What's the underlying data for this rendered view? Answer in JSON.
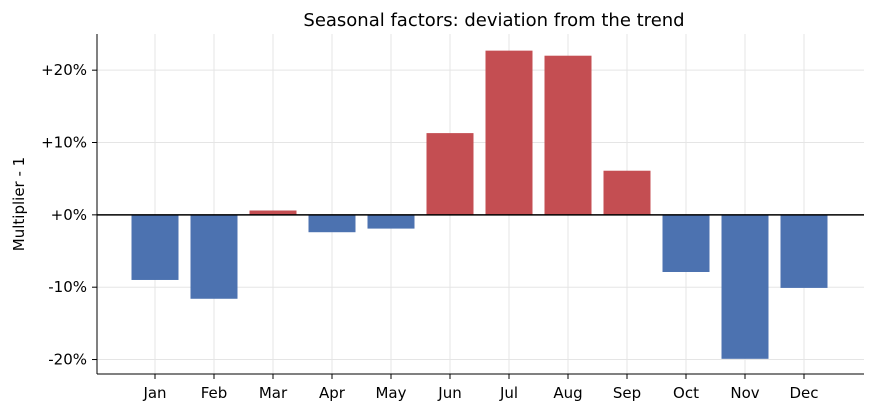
{
  "chart_data": {
    "type": "bar",
    "title": "Seasonal factors: deviation from the trend",
    "xlabel": "",
    "ylabel": "Multiplier - 1",
    "categories": [
      "Jan",
      "Feb",
      "Mar",
      "Apr",
      "May",
      "Jun",
      "Jul",
      "Aug",
      "Sep",
      "Oct",
      "Nov",
      "Dec"
    ],
    "values": [
      -9.0,
      -11.6,
      0.6,
      -2.4,
      -1.9,
      11.3,
      22.7,
      22.0,
      6.1,
      -7.9,
      -19.9,
      -10.1
    ],
    "ylim": [
      -22.0,
      25.0
    ],
    "yticks": [
      -20,
      -10,
      0,
      10,
      20
    ],
    "ytick_labels": [
      "-20%",
      "-10%",
      "+0%",
      "+10%",
      "+20%"
    ],
    "grid": true,
    "colors": {
      "positive": "#c44e52",
      "negative": "#4c72b0",
      "grid": "#e5e5e5",
      "axis": "#000000"
    }
  }
}
